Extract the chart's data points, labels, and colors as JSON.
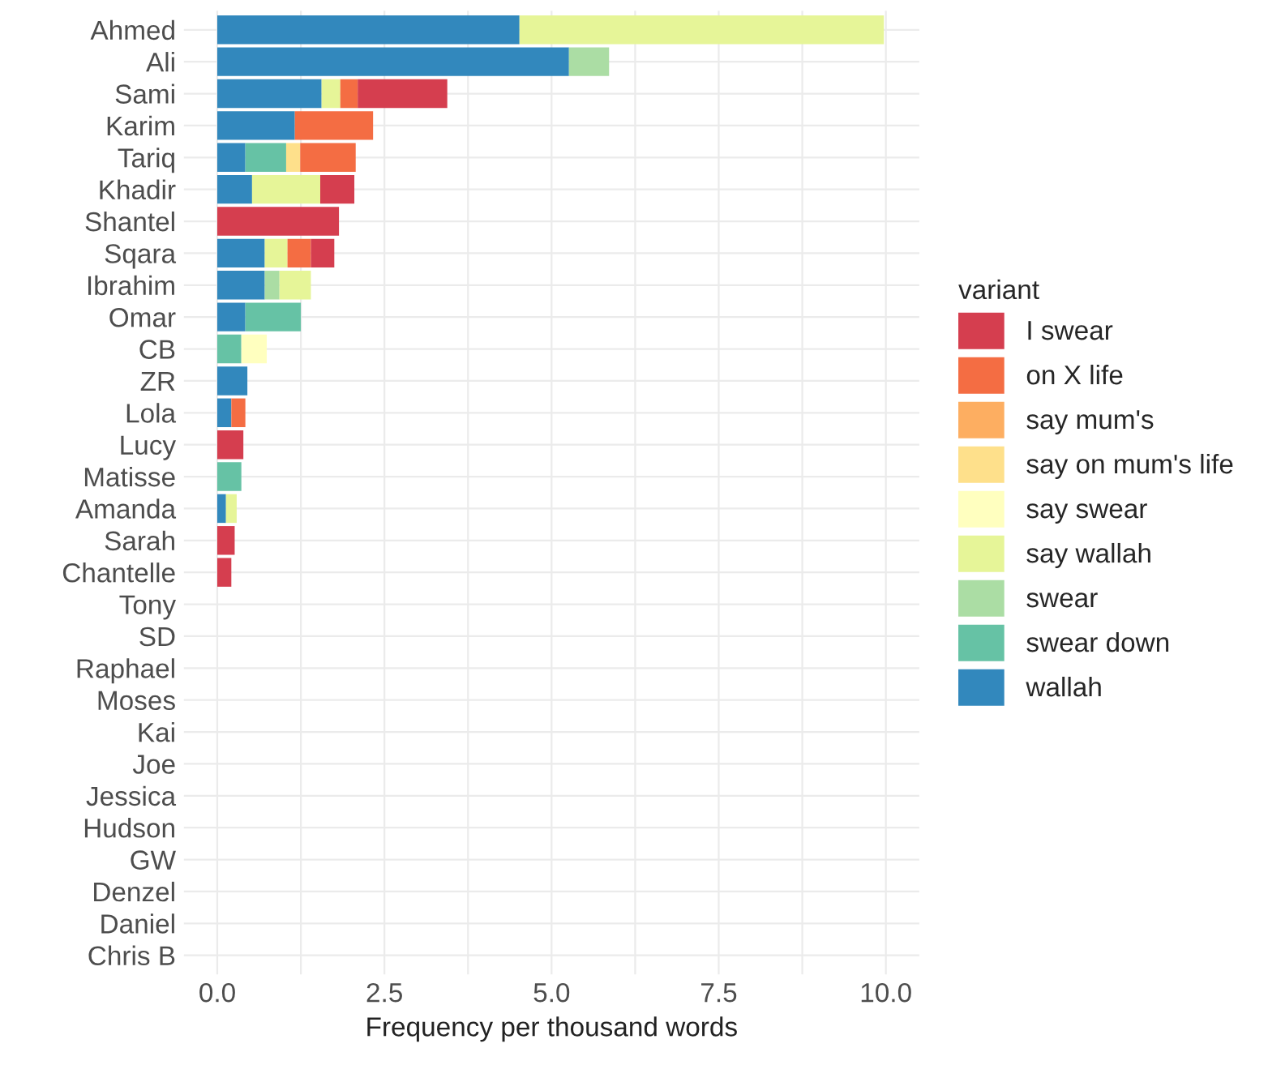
{
  "chart_data": {
    "type": "bar",
    "orientation": "horizontal",
    "stacked": true,
    "xlabel": "Frequency per thousand words",
    "legend_title": "variant",
    "legend": "right",
    "grid": true,
    "xlim": [
      -0.5,
      10.5
    ],
    "xticks": [
      {
        "value": 0,
        "label": "0.0"
      },
      {
        "value": 2.5,
        "label": "2.5"
      },
      {
        "value": 5,
        "label": "5.0"
      },
      {
        "value": 7.5,
        "label": "7.5"
      },
      {
        "value": 10,
        "label": "10.0"
      }
    ],
    "categories": [
      "Ahmed",
      "Ali",
      "Sami",
      "Karim",
      "Tariq",
      "Khadir",
      "Shantel",
      "Sqara",
      "Ibrahim",
      "Omar",
      "CB",
      "ZR",
      "Lola",
      "Lucy",
      "Matisse",
      "Amanda",
      "Sarah",
      "Chantelle",
      "Tony",
      "SD",
      "Raphael",
      "Moses",
      "Kai",
      "Joe",
      "Jessica",
      "Hudson",
      "GW",
      "Denzel",
      "Daniel",
      "Chris B"
    ],
    "series": [
      {
        "name": "wallah",
        "color": "#3288bd",
        "values": [
          4.52,
          5.26,
          1.56,
          1.16,
          0.42,
          0.52,
          0,
          0.71,
          0.71,
          0.42,
          0,
          0.45,
          0.21,
          0,
          0,
          0.13,
          0,
          0,
          0,
          0,
          0,
          0,
          0,
          0,
          0,
          0,
          0,
          0,
          0,
          0
        ]
      },
      {
        "name": "swear down",
        "color": "#66c2a5",
        "values": [
          0,
          0,
          0,
          0,
          0.61,
          0,
          0,
          0,
          0,
          0.83,
          0.36,
          0,
          0,
          0,
          0.36,
          0,
          0,
          0,
          0,
          0,
          0,
          0,
          0,
          0,
          0,
          0,
          0,
          0,
          0,
          0
        ]
      },
      {
        "name": "swear",
        "color": "#abdda4",
        "values": [
          0,
          0.6,
          0,
          0,
          0,
          0,
          0,
          0,
          0.22,
          0,
          0,
          0,
          0,
          0,
          0,
          0,
          0,
          0,
          0,
          0,
          0,
          0,
          0,
          0,
          0,
          0,
          0,
          0,
          0,
          0
        ]
      },
      {
        "name": "say wallah",
        "color": "#e6f598",
        "values": [
          5.45,
          0,
          0.28,
          0,
          0,
          1.02,
          0,
          0.34,
          0.47,
          0,
          0,
          0,
          0,
          0,
          0,
          0.16,
          0,
          0,
          0,
          0,
          0,
          0,
          0,
          0,
          0,
          0,
          0,
          0,
          0,
          0
        ]
      },
      {
        "name": "say swear",
        "color": "#ffffbf",
        "values": [
          0,
          0,
          0,
          0,
          0,
          0,
          0,
          0,
          0,
          0,
          0.38,
          0,
          0,
          0,
          0,
          0,
          0,
          0,
          0,
          0,
          0,
          0,
          0,
          0,
          0,
          0,
          0,
          0,
          0,
          0
        ]
      },
      {
        "name": "say on mum's life",
        "color": "#fee08b",
        "values": [
          0,
          0,
          0,
          0,
          0.21,
          0,
          0,
          0,
          0,
          0,
          0,
          0,
          0,
          0,
          0,
          0,
          0,
          0,
          0,
          0,
          0,
          0,
          0,
          0,
          0,
          0,
          0,
          0,
          0,
          0
        ]
      },
      {
        "name": "say mum's",
        "color": "#fdae61",
        "values": [
          0,
          0,
          0,
          0,
          0,
          0,
          0,
          0,
          0,
          0,
          0,
          0,
          0,
          0,
          0,
          0,
          0,
          0,
          0,
          0,
          0,
          0,
          0,
          0,
          0,
          0,
          0,
          0,
          0,
          0
        ]
      },
      {
        "name": "on X life",
        "color": "#f46d43",
        "values": [
          0,
          0,
          0.26,
          1.17,
          0.83,
          0,
          0,
          0.35,
          0,
          0,
          0,
          0,
          0.21,
          0,
          0,
          0,
          0,
          0,
          0,
          0,
          0,
          0,
          0,
          0,
          0,
          0,
          0,
          0,
          0,
          0
        ]
      },
      {
        "name": "I swear",
        "color": "#d53e4f",
        "values": [
          0,
          0,
          1.34,
          0,
          0,
          0.51,
          1.82,
          0.35,
          0,
          0,
          0,
          0,
          0,
          0.39,
          0,
          0,
          0.26,
          0.21,
          0,
          0,
          0,
          0,
          0,
          0,
          0,
          0,
          0,
          0,
          0,
          0
        ]
      }
    ]
  }
}
